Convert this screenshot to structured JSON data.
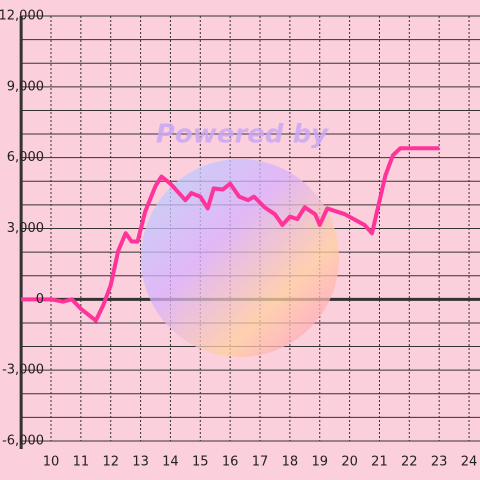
{
  "chart_data": {
    "type": "line",
    "watermark": "Powered by",
    "x": [
      9,
      10,
      10.4,
      10.7,
      11.0,
      11.5,
      11.75,
      12.0,
      12.25,
      12.5,
      12.7,
      12.9,
      13.15,
      13.5,
      13.7,
      14.0,
      14.5,
      14.7,
      15.0,
      15.25,
      15.45,
      15.75,
      16.0,
      16.3,
      16.6,
      16.8,
      17.15,
      17.5,
      17.75,
      18.0,
      18.25,
      18.5,
      18.85,
      19.0,
      19.25,
      19.85,
      20.5,
      20.75,
      21.2,
      21.45,
      21.7,
      23.0
    ],
    "series": [
      {
        "color": "#ff3399",
        "values": [
          0,
          0,
          -100,
          0,
          -400,
          -900,
          -250,
          600,
          2050,
          2800,
          2450,
          2450,
          3700,
          4800,
          5200,
          4900,
          4200,
          4500,
          4350,
          3850,
          4700,
          4650,
          4900,
          4350,
          4200,
          4350,
          3900,
          3600,
          3150,
          3500,
          3400,
          3900,
          3600,
          3150,
          3850,
          3600,
          3150,
          2800,
          5250,
          6100,
          6400,
          6400
        ]
      }
    ],
    "xlim": [
      9,
      24.4
    ],
    "xticks": [
      10,
      11,
      12,
      13,
      14,
      15,
      16,
      17,
      18,
      19,
      20,
      21,
      22,
      23,
      24
    ],
    "ylim": [
      -6000,
      12000
    ],
    "yticks": [
      {
        "value": -6000,
        "label": "-6,000"
      },
      {
        "value": -3000,
        "label": "-3,000"
      },
      0,
      {
        "value": 3000,
        "label": "3,000"
      },
      {
        "value": 6000,
        "label": "6,000"
      },
      {
        "value": 9000,
        "label": "9,000"
      },
      {
        "value": 12000,
        "label": "12,000"
      }
    ],
    "minor_yticks": [
      -5000,
      -4000,
      -2000,
      -1000,
      1000,
      2000,
      4000,
      5000,
      7000,
      8000,
      10000,
      11000
    ],
    "grid": true
  }
}
